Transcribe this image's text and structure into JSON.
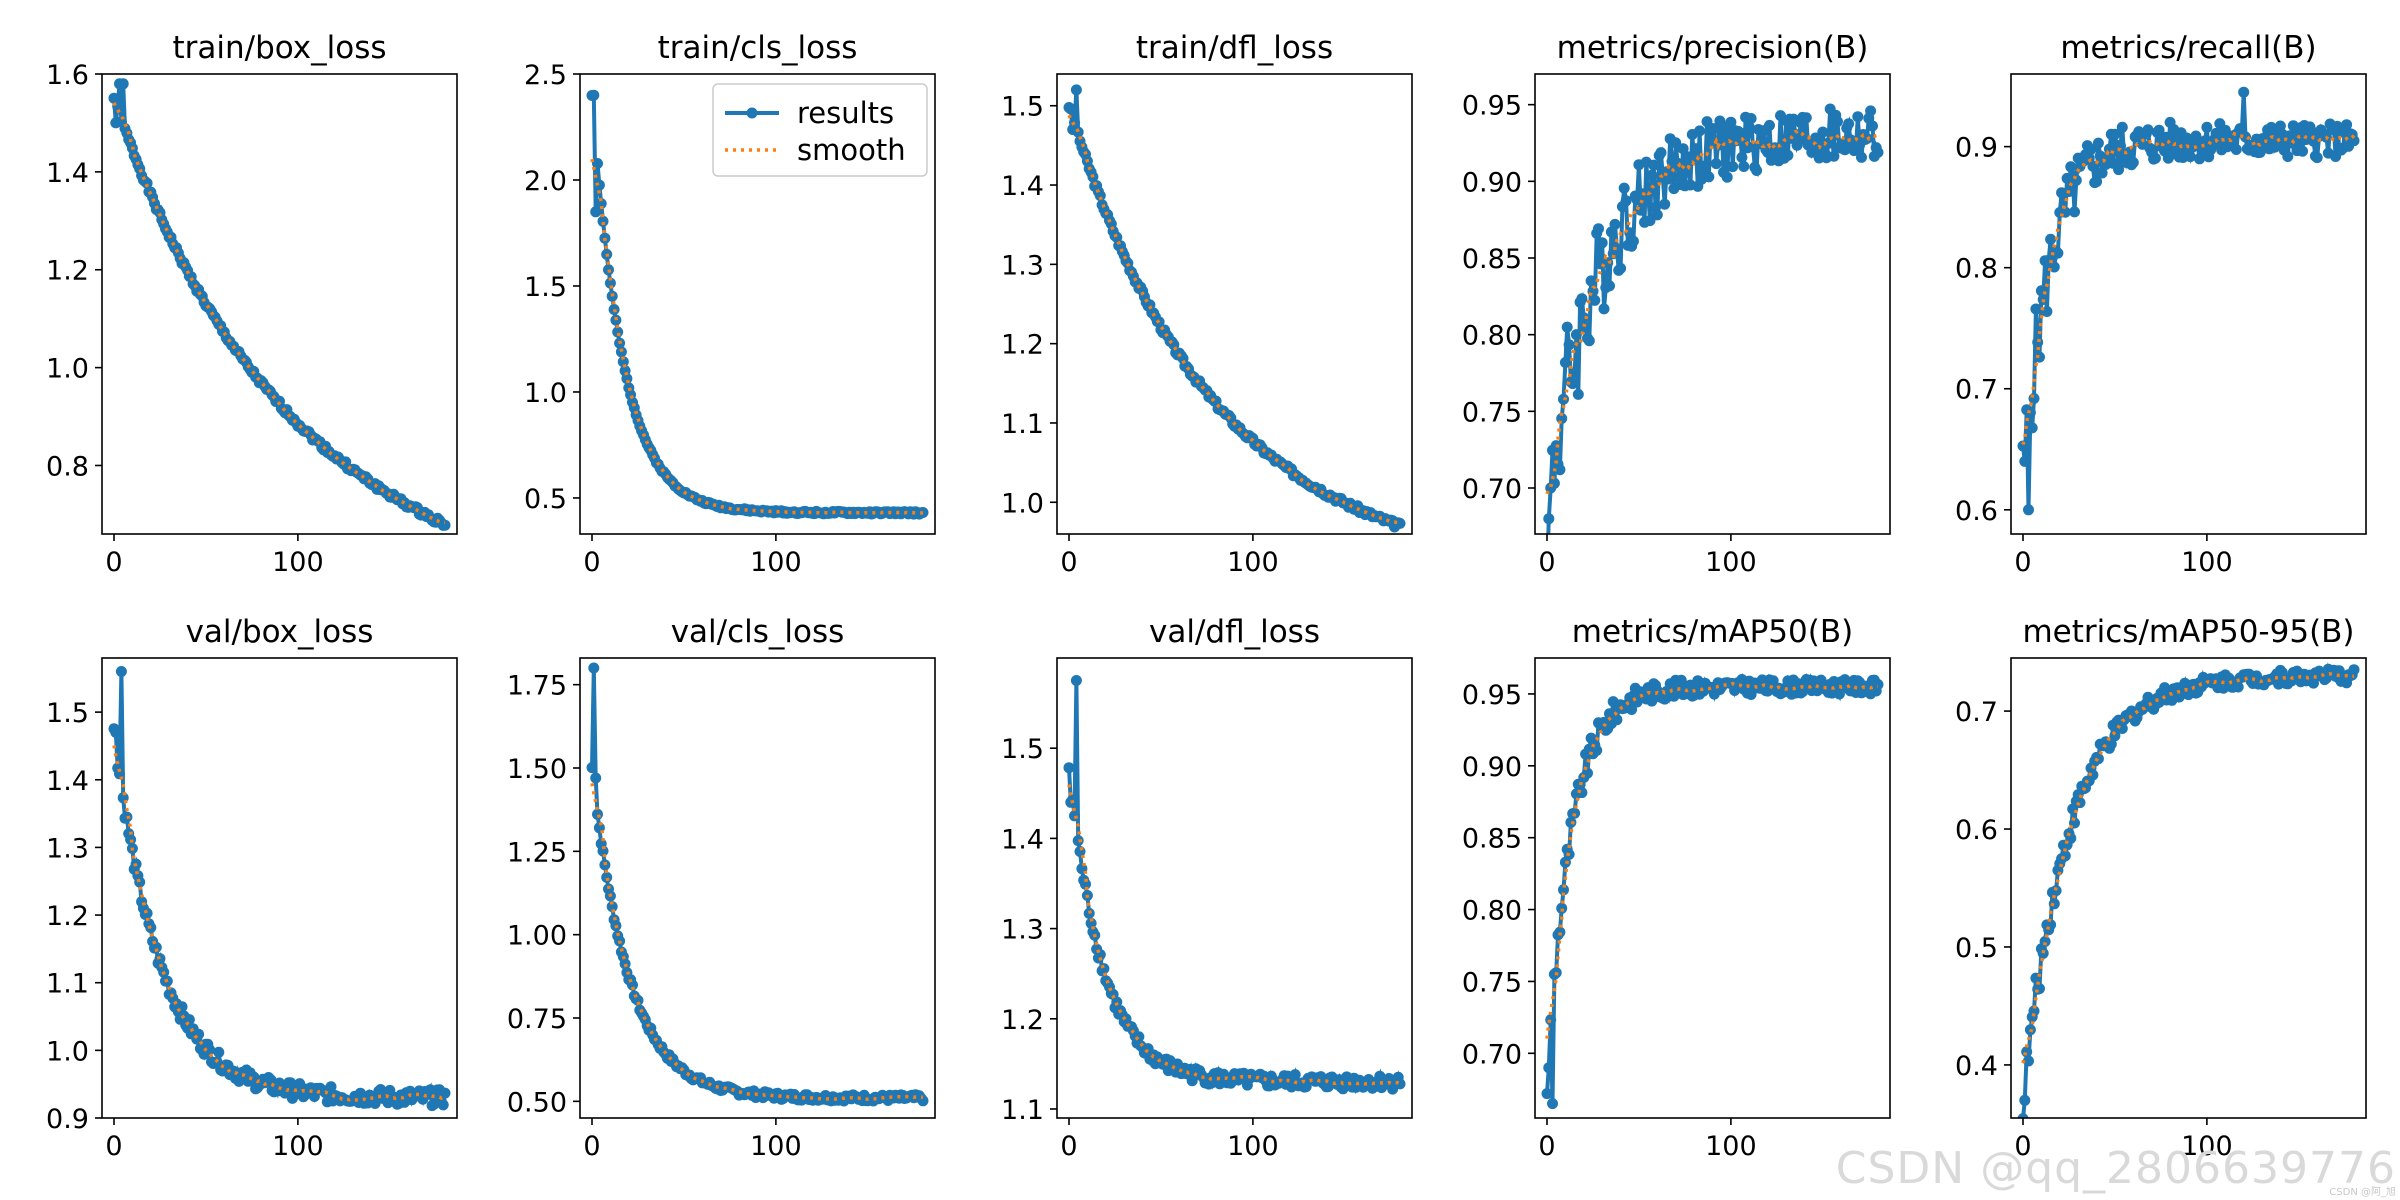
{
  "colors": {
    "results": "#1f77b4",
    "smooth": "#ff7f0e",
    "axis": "#000000",
    "background": "#ffffff"
  },
  "legend": {
    "results_label": "results",
    "smooth_label": "smooth",
    "placement": "top-right",
    "panel": "train/cls_loss"
  },
  "watermark": {
    "text": "CSDN @qq_2806639776",
    "small_text": "CSDN @阿_旭"
  },
  "chart_data": [
    {
      "type": "line",
      "title": "train/box_loss",
      "x_range": [
        0,
        180
      ],
      "xticks": [
        0,
        100
      ],
      "xtick_labels": [
        "0",
        "100"
      ],
      "ylim": [
        0.66,
        1.6
      ],
      "yticks": [
        0.8,
        1.0,
        1.2,
        1.4,
        1.6
      ],
      "ytick_labels": [
        "0.8",
        "1.0",
        "1.2",
        "1.4",
        "1.6"
      ],
      "curve": {
        "start": 1.55,
        "end": 0.68,
        "kind": "decay",
        "rate": 0.012,
        "noise": 0.006,
        "seed": 1
      },
      "peaks": [
        [
          3,
          1.58
        ],
        [
          5,
          1.58
        ],
        [
          1,
          1.5
        ]
      ]
    },
    {
      "type": "line",
      "title": "train/cls_loss",
      "x_range": [
        0,
        180
      ],
      "xticks": [
        0,
        100
      ],
      "xtick_labels": [
        "0",
        "100"
      ],
      "ylim": [
        0.33,
        2.5
      ],
      "yticks": [
        0.5,
        1.0,
        1.5,
        2.0,
        2.5
      ],
      "ytick_labels": [
        "0.5",
        "1.0",
        "1.5",
        "2.0",
        "2.5"
      ],
      "curve": {
        "start": 2.4,
        "end": 0.43,
        "kind": "decay",
        "rate": 0.06,
        "noise": 0.006,
        "seed": 2
      },
      "peaks": [
        [
          1,
          2.4
        ],
        [
          2,
          1.85
        ]
      ]
    },
    {
      "type": "line",
      "title": "train/dfl_loss",
      "x_range": [
        0,
        180
      ],
      "xticks": [
        0,
        100
      ],
      "xtick_labels": [
        "0",
        "100"
      ],
      "ylim": [
        0.96,
        1.54
      ],
      "yticks": [
        1.0,
        1.1,
        1.2,
        1.3,
        1.4,
        1.5
      ],
      "ytick_labels": [
        "1.0",
        "1.1",
        "1.2",
        "1.3",
        "1.4",
        "1.5"
      ],
      "curve": {
        "start": 1.5,
        "end": 0.97,
        "kind": "decay",
        "rate": 0.014,
        "noise": 0.004,
        "seed": 3
      },
      "peaks": [
        [
          4,
          1.52
        ],
        [
          2,
          1.47
        ]
      ]
    },
    {
      "type": "line",
      "title": "metrics/precision(B)",
      "x_range": [
        0,
        180
      ],
      "xticks": [
        0,
        100
      ],
      "xtick_labels": [
        "0",
        "100"
      ],
      "ylim": [
        0.67,
        0.97
      ],
      "yticks": [
        0.7,
        0.75,
        0.8,
        0.85,
        0.9,
        0.95
      ],
      "ytick_labels": [
        "0.70",
        "0.75",
        "0.80",
        "0.85",
        "0.90",
        "0.95"
      ],
      "curve": {
        "start": 0.69,
        "end": 0.93,
        "kind": "rise",
        "rate": 0.035,
        "noise": 0.018,
        "seed": 4
      },
      "peaks": [
        [
          1,
          0.68
        ],
        [
          2,
          0.7
        ]
      ]
    },
    {
      "type": "line",
      "title": "metrics/recall(B)",
      "x_range": [
        0,
        180
      ],
      "xticks": [
        0,
        100
      ],
      "xtick_labels": [
        "0",
        "100"
      ],
      "ylim": [
        0.58,
        0.96
      ],
      "yticks": [
        0.6,
        0.7,
        0.8,
        0.9
      ],
      "ytick_labels": [
        "0.6",
        "0.7",
        "0.8",
        "0.9"
      ],
      "curve": {
        "start": 0.62,
        "end": 0.905,
        "kind": "rise",
        "rate": 0.07,
        "noise": 0.014,
        "seed": 5
      },
      "peaks": [
        [
          1,
          0.64
        ],
        [
          3,
          0.6
        ],
        [
          120,
          0.945
        ]
      ]
    },
    {
      "type": "line",
      "title": "val/box_loss",
      "x_range": [
        0,
        180
      ],
      "xticks": [
        0,
        100
      ],
      "xtick_labels": [
        "0",
        "100"
      ],
      "ylim": [
        0.9,
        1.58
      ],
      "yticks": [
        0.9,
        1.0,
        1.1,
        1.2,
        1.3,
        1.4,
        1.5
      ],
      "ytick_labels": [
        "0.9",
        "1.0",
        "1.1",
        "1.2",
        "1.3",
        "1.4",
        "1.5"
      ],
      "curve": {
        "start": 1.47,
        "end": 0.93,
        "kind": "decay",
        "rate": 0.04,
        "noise": 0.012,
        "seed": 6
      },
      "peaks": [
        [
          4,
          1.56
        ],
        [
          1,
          1.47
        ]
      ]
    },
    {
      "type": "line",
      "title": "val/cls_loss",
      "x_range": [
        0,
        180
      ],
      "xticks": [
        0,
        100
      ],
      "xtick_labels": [
        "0",
        "100"
      ],
      "ylim": [
        0.45,
        1.83
      ],
      "yticks": [
        0.5,
        0.75,
        1.0,
        1.25,
        1.5,
        1.75
      ],
      "ytick_labels": [
        "0.50",
        "0.75",
        "1.00",
        "1.25",
        "1.50",
        "1.75"
      ],
      "curve": {
        "start": 1.5,
        "end": 0.51,
        "kind": "decay",
        "rate": 0.05,
        "noise": 0.01,
        "seed": 7
      },
      "peaks": [
        [
          1,
          1.8
        ],
        [
          2,
          1.47
        ]
      ]
    },
    {
      "type": "line",
      "title": "val/dfl_loss",
      "x_range": [
        0,
        180
      ],
      "xticks": [
        0,
        100
      ],
      "xtick_labels": [
        "0",
        "100"
      ],
      "ylim": [
        1.09,
        1.6
      ],
      "yticks": [
        1.1,
        1.2,
        1.3,
        1.4,
        1.5
      ],
      "ytick_labels": [
        "1.1",
        "1.2",
        "1.3",
        "1.4",
        "1.5"
      ],
      "curve": {
        "start": 1.48,
        "end": 1.13,
        "kind": "decay",
        "rate": 0.055,
        "noise": 0.008,
        "seed": 8
      },
      "peaks": [
        [
          4,
          1.575
        ],
        [
          1,
          1.44
        ]
      ]
    },
    {
      "type": "line",
      "title": "metrics/mAP50(B)",
      "x_range": [
        0,
        180
      ],
      "xticks": [
        0,
        100
      ],
      "xtick_labels": [
        "0",
        "100"
      ],
      "ylim": [
        0.655,
        0.975
      ],
      "yticks": [
        0.7,
        0.75,
        0.8,
        0.85,
        0.9,
        0.95
      ],
      "ytick_labels": [
        "0.70",
        "0.75",
        "0.80",
        "0.85",
        "0.90",
        "0.95"
      ],
      "curve": {
        "start": 0.68,
        "end": 0.955,
        "kind": "rise",
        "rate": 0.075,
        "noise": 0.005,
        "seed": 9
      },
      "peaks": [
        [
          3,
          0.665
        ],
        [
          1,
          0.69
        ]
      ]
    },
    {
      "type": "line",
      "title": "metrics/mAP50-95(B)",
      "x_range": [
        0,
        180
      ],
      "xticks": [
        0,
        100
      ],
      "xtick_labels": [
        "0",
        "100"
      ],
      "ylim": [
        0.355,
        0.745
      ],
      "yticks": [
        0.4,
        0.5,
        0.6,
        0.7
      ],
      "ytick_labels": [
        "0.4",
        "0.5",
        "0.6",
        "0.7"
      ],
      "curve": {
        "start": 0.37,
        "end": 0.73,
        "kind": "rise",
        "rate": 0.04,
        "noise": 0.006,
        "seed": 10
      },
      "peaks": [
        [
          1,
          0.37
        ]
      ]
    }
  ]
}
